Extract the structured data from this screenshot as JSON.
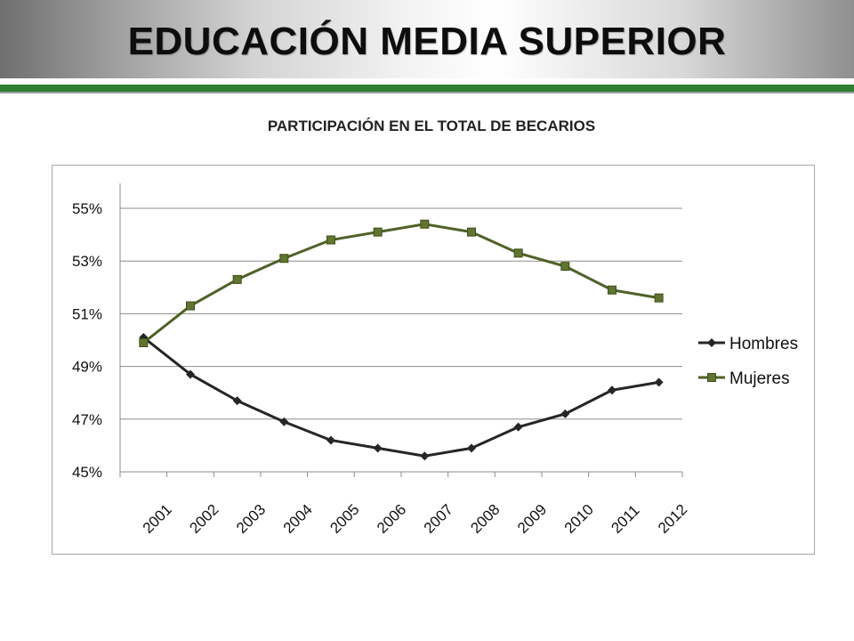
{
  "header": {
    "title": "EDUCACIÓN MEDIA SUPERIOR",
    "accent_color": "#2e7d32"
  },
  "chart_data": {
    "type": "line",
    "title": "PARTICIPACIÓN EN EL TOTAL DE BECARIOS",
    "xlabel": "",
    "ylabel": "",
    "categories": [
      "2001",
      "2002",
      "2003",
      "2004",
      "2005",
      "2006",
      "2007",
      "2008",
      "2009",
      "2010",
      "2011",
      "2012"
    ],
    "ylim": [
      45,
      55
    ],
    "yticks": [
      45,
      47,
      49,
      51,
      53,
      55
    ],
    "ytick_labels": [
      "45%",
      "47%",
      "49%",
      "51%",
      "53%",
      "55%"
    ],
    "grid": true,
    "legend_position": "right",
    "series": [
      {
        "name": "Hombres",
        "color": "#262626",
        "marker": "diamond",
        "values": [
          50.1,
          48.7,
          47.7,
          46.9,
          46.2,
          45.9,
          45.6,
          45.9,
          46.7,
          47.2,
          48.1,
          48.4
        ]
      },
      {
        "name": "Mujeres",
        "color": "#4f6228",
        "marker": "square",
        "values": [
          49.9,
          51.3,
          52.3,
          53.1,
          53.8,
          54.1,
          54.4,
          54.1,
          53.3,
          52.8,
          51.9,
          51.6
        ]
      }
    ]
  }
}
